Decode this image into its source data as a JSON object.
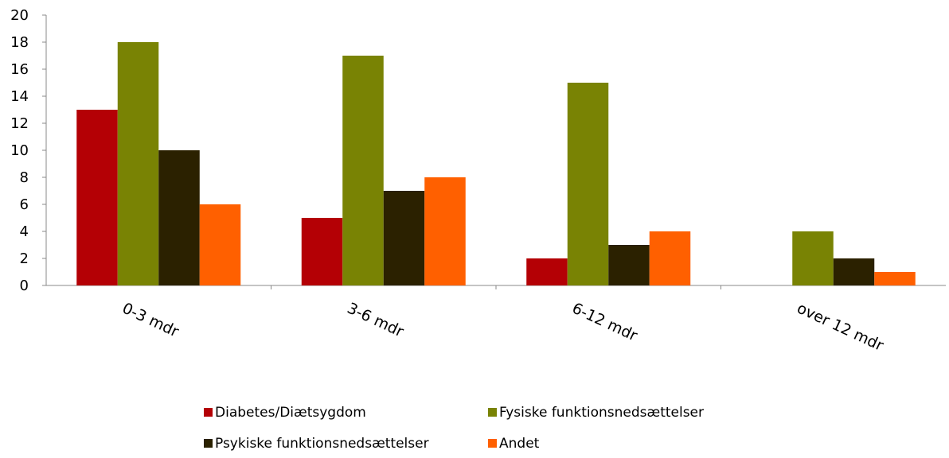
{
  "chart_data": {
    "type": "bar",
    "categories": [
      "0-3 mdr",
      "3-6 mdr",
      "6-12 mdr",
      "over 12 mdr"
    ],
    "series": [
      {
        "name": "Diabetes/Diætsygdom",
        "color": "#b40005",
        "values": [
          13,
          5,
          2,
          0
        ]
      },
      {
        "name": "Fysiske funktionsnedsættelser",
        "color": "#798304",
        "values": [
          18,
          17,
          15,
          4
        ]
      },
      {
        "name": "Psykiske funktionsnedsættelser",
        "color": "#2b2100",
        "values": [
          10,
          7,
          3,
          2
        ]
      },
      {
        "name": "Andet",
        "color": "#ff6000",
        "values": [
          6,
          8,
          4,
          1
        ]
      }
    ],
    "ylim": [
      0,
      20
    ],
    "yticks": [
      "0",
      "2",
      "4",
      "6",
      "8",
      "10",
      "12",
      "14",
      "16",
      "18",
      "20"
    ],
    "grid": false,
    "legend_position": "bottom"
  }
}
